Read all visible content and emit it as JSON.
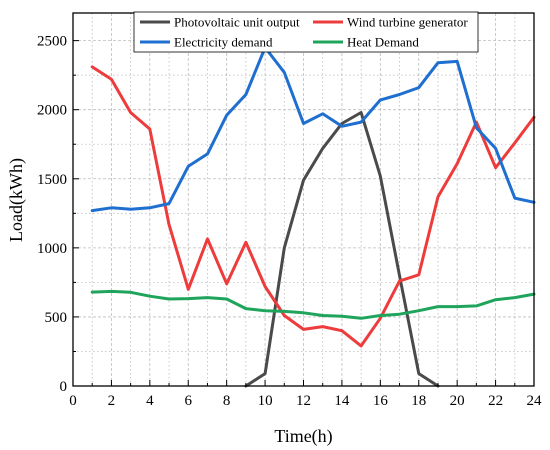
{
  "chart_data": {
    "type": "line",
    "xlabel": "Time(h)",
    "ylabel": "Load(kWh)",
    "xlim": [
      0,
      24
    ],
    "ylim": [
      0,
      2700
    ],
    "xticks": [
      0,
      2,
      4,
      6,
      8,
      10,
      12,
      14,
      16,
      18,
      20,
      22,
      24
    ],
    "yticks": [
      0,
      500,
      1000,
      1500,
      2000,
      2500
    ],
    "grid": true,
    "legend": "top-center",
    "series": [
      {
        "name": "Photovoltaic unit output",
        "color": "#4a4a4a",
        "x": [
          9,
          10,
          11,
          12,
          13,
          14,
          15,
          16,
          17,
          18,
          19
        ],
        "values": [
          0,
          90,
          1000,
          1490,
          1720,
          1900,
          1980,
          1520,
          800,
          90,
          0
        ]
      },
      {
        "name": "Wind turbine generator",
        "color": "#ee3b3b",
        "x": [
          1,
          2,
          3,
          4,
          5,
          6,
          7,
          8,
          9,
          10,
          11,
          12,
          13,
          14,
          15,
          16,
          17,
          18,
          19,
          20,
          21,
          22,
          23,
          24
        ],
        "values": [
          2310,
          2220,
          1980,
          1860,
          1170,
          700,
          1065,
          740,
          1040,
          720,
          510,
          410,
          430,
          400,
          290,
          490,
          760,
          805,
          1370,
          1610,
          1910,
          1580,
          1760,
          1945
        ]
      },
      {
        "name": "Electricity demand",
        "color": "#1e6fd0",
        "x": [
          1,
          2,
          3,
          4,
          5,
          6,
          7,
          8,
          9,
          10,
          11,
          12,
          13,
          14,
          15,
          16,
          17,
          18,
          19,
          20,
          21,
          22,
          23,
          24
        ],
        "values": [
          1270,
          1290,
          1280,
          1290,
          1320,
          1590,
          1680,
          1960,
          2110,
          2450,
          2270,
          1900,
          1970,
          1880,
          1910,
          2070,
          2110,
          2160,
          2340,
          2350,
          1870,
          1720,
          1360,
          1330
        ]
      },
      {
        "name": "Heat Demand",
        "color": "#1fa45c",
        "x": [
          1,
          2,
          3,
          4,
          5,
          6,
          7,
          8,
          9,
          10,
          11,
          12,
          13,
          14,
          15,
          16,
          17,
          18,
          19,
          20,
          21,
          22,
          23,
          24
        ],
        "values": [
          680,
          685,
          678,
          650,
          630,
          633,
          640,
          630,
          560,
          545,
          540,
          530,
          510,
          505,
          490,
          510,
          520,
          545,
          575,
          575,
          580,
          625,
          640,
          665
        ]
      }
    ]
  }
}
